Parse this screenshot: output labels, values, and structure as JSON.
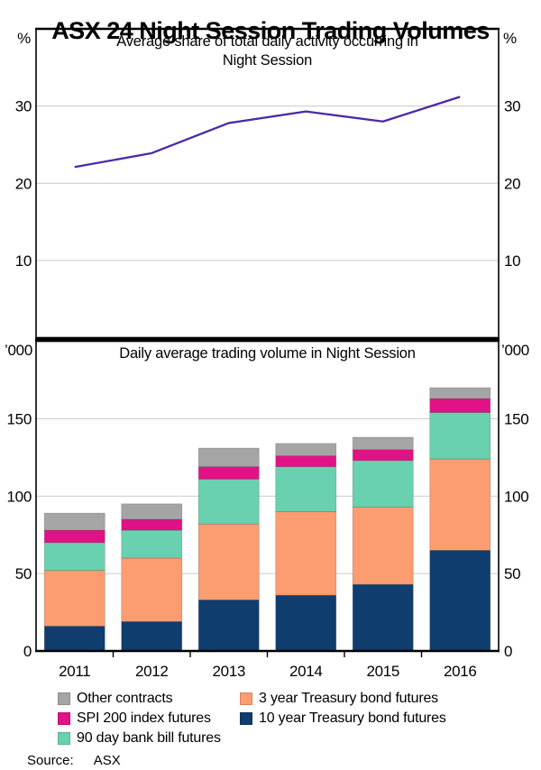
{
  "title": "ASX 24 Night Session Trading Volumes",
  "panels": {
    "top": {
      "unit_left": "%",
      "unit_right": "%"
    },
    "bottom": {
      "unit_left": "’000",
      "unit_right": "’000"
    }
  },
  "chart_data": [
    {
      "type": "line",
      "title_lines": [
        "Average share of total daily activity occurring in",
        "Night Session"
      ],
      "x": [
        "2011",
        "2012",
        "2013",
        "2014",
        "2015",
        "2016"
      ],
      "series": [
        {
          "name": "Average share of total daily activity occurring in Night Session",
          "values": [
            22.1,
            23.9,
            27.8,
            29.3,
            28.0,
            31.2
          ],
          "color": "#4B2AA6"
        }
      ],
      "ylabel": "%",
      "ylim": [
        0,
        40
      ],
      "yticks": [
        10,
        20,
        30
      ],
      "grid": true,
      "gridcolor": "#C9C9C9"
    },
    {
      "type": "bar",
      "stacked": true,
      "title": "Daily average trading volume in Night Session",
      "categories": [
        "2011",
        "2012",
        "2013",
        "2014",
        "2015",
        "2016"
      ],
      "series": [
        {
          "name": "10 year Treasury bond futures",
          "color": "#0F3D6E",
          "values": [
            16,
            19,
            33,
            36,
            43,
            65
          ]
        },
        {
          "name": "3 year Treasury bond futures",
          "color": "#FB9D71",
          "values": [
            36,
            41,
            49,
            54,
            50,
            59
          ]
        },
        {
          "name": "90 day bank bill futures",
          "color": "#69D1AF",
          "values": [
            18,
            18,
            29,
            29,
            30,
            30
          ]
        },
        {
          "name": "SPI 200 index futures",
          "color": "#E01285",
          "values": [
            8,
            7,
            8,
            7,
            7,
            9
          ]
        },
        {
          "name": "Other contracts",
          "color": "#A5A5A5",
          "values": [
            11,
            10,
            12,
            8,
            8,
            7
          ]
        }
      ],
      "ylabel": "’000",
      "ylim": [
        0,
        200
      ],
      "yticks": [
        0,
        50,
        100,
        150
      ],
      "grid": true,
      "gridcolor": "#C9C9C9"
    }
  ],
  "legend": {
    "columns": [
      [
        {
          "label": "Other contracts",
          "color": "#A5A5A5"
        },
        {
          "label": "SPI 200 index futures",
          "color": "#E01285"
        },
        {
          "label": "90 day bank bill futures",
          "color": "#69D1AF"
        }
      ],
      [
        {
          "label": "3 year Treasury bond futures",
          "color": "#FB9D71"
        },
        {
          "label": "10 year Treasury bond futures",
          "color": "#0F3D6E"
        }
      ]
    ]
  },
  "source_label": "Source:",
  "source_value": "ASX"
}
